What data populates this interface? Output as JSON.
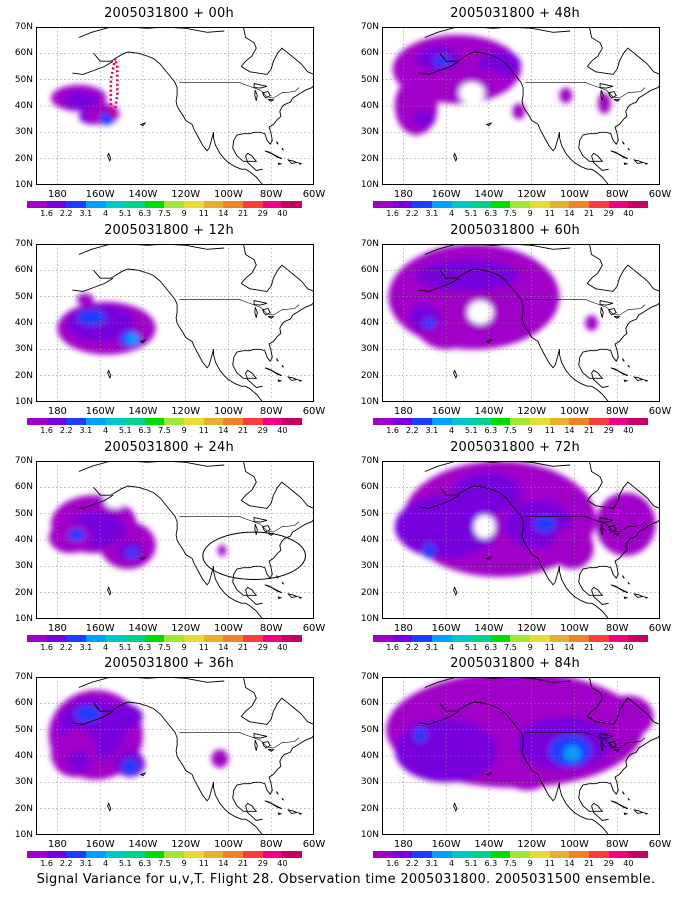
{
  "panels": [
    {
      "title": "2005031800 + 00h",
      "time": "00h"
    },
    {
      "title": "2005031800 + 12h",
      "time": "12h"
    },
    {
      "title": "2005031800 + 24h",
      "time": "24h"
    },
    {
      "title": "2005031800 + 36h",
      "time": "36h"
    },
    {
      "title": "2005031800 + 48h",
      "time": "48h"
    },
    {
      "title": "2005031800 + 60h",
      "time": "60h"
    },
    {
      "title": "2005031800 + 72h",
      "time": "72h"
    },
    {
      "title": "2005031800 + 84h",
      "time": "84h"
    }
  ],
  "axes": {
    "y_ticks": [
      "70N",
      "60N",
      "50N",
      "40N",
      "30N",
      "20N",
      "10N"
    ],
    "x_ticks": [
      "180",
      "160W",
      "140W",
      "120W",
      "100W",
      "80W",
      "60W"
    ]
  },
  "colorbar": {
    "labels": [
      "1.6",
      "2.2",
      "3.1",
      "4",
      "5.1",
      "6.3",
      "7.5",
      "9",
      "11",
      "14",
      "21",
      "29",
      "40"
    ],
    "colors": [
      "#a000c8",
      "#7800dc",
      "#1e3cff",
      "#00a0ff",
      "#00c8c8",
      "#00d28c",
      "#00dc00",
      "#a0e632",
      "#e6dc32",
      "#e6af2d",
      "#f08228",
      "#fa3c3c",
      "#f00082",
      "#c80064"
    ]
  },
  "caption": "Signal Variance for u,v,T. Flight 28. Observation time 2005031800. 2005031500 ensemble."
}
